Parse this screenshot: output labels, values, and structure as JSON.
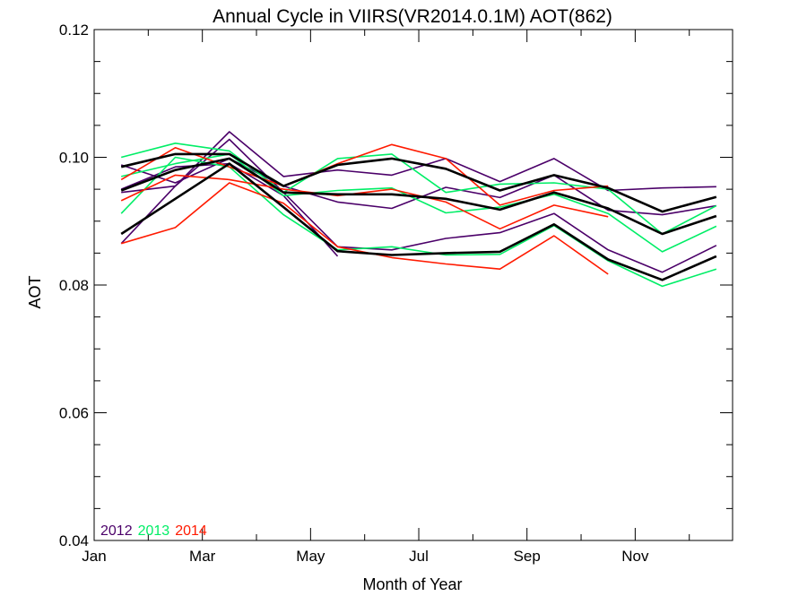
{
  "chart_data": {
    "type": "line",
    "title": "Annual Cycle in VIIRS(VR2014.0.1M) AOT(862)",
    "xlabel": "Month of Year",
    "ylabel": "AOT",
    "xlim": [
      1,
      12.8
    ],
    "ylim": [
      0.04,
      0.12
    ],
    "x_ticks": [
      {
        "value": 1,
        "label": "Jan"
      },
      {
        "value": 3,
        "label": "Mar"
      },
      {
        "value": 5,
        "label": "May"
      },
      {
        "value": 7,
        "label": "Jul"
      },
      {
        "value": 9,
        "label": "Sep"
      },
      {
        "value": 11,
        "label": "Nov"
      }
    ],
    "y_ticks": [
      {
        "value": 0.04,
        "label": "0.04"
      },
      {
        "value": 0.06,
        "label": "0.06"
      },
      {
        "value": 0.08,
        "label": "0.08"
      },
      {
        "value": 0.1,
        "label": "0.10"
      },
      {
        "value": 0.12,
        "label": "0.12"
      }
    ],
    "grid": false,
    "legend": {
      "placement": "bottom-left",
      "entries": [
        {
          "label": "2012",
          "color": "#4b0069"
        },
        {
          "label": "2013",
          "color": "#00ee66"
        },
        {
          "label": "2014",
          "color": "#ff1a00"
        }
      ]
    },
    "series": [
      {
        "color": "#4b0069",
        "width": 1.6,
        "x": [
          1.5,
          2.5,
          3.5,
          4.5,
          5.5,
          6.5,
          7.5,
          8.5,
          9.5,
          10.5,
          11.5,
          12.5
        ],
        "y": [
          0.0865,
          0.0955,
          0.1028,
          0.0945,
          0.086,
          0.0855,
          0.0873,
          0.0882,
          0.0912,
          0.0855,
          0.082,
          0.0862
        ]
      },
      {
        "color": "#4b0069",
        "width": 1.6,
        "x": [
          1.5,
          2.5,
          3.5,
          4.5,
          5.5,
          6.5,
          7.5,
          8.5,
          9.5,
          10.5,
          11.5,
          12.5
        ],
        "y": [
          0.0945,
          0.0955,
          0.104,
          0.097,
          0.098,
          0.0972,
          0.0998,
          0.0962,
          0.0998,
          0.0948,
          0.0952,
          0.0954
        ]
      },
      {
        "color": "#4b0069",
        "width": 1.6,
        "x": [
          1.5,
          2.5,
          3.5,
          4.5,
          5.5,
          6.5,
          7.5,
          8.5,
          9.5,
          10.5,
          11.5,
          12.5
        ],
        "y": [
          0.0988,
          0.096,
          0.0998,
          0.0955,
          0.093,
          0.092,
          0.0953,
          0.0937,
          0.0972,
          0.0917,
          0.091,
          0.0924
        ]
      },
      {
        "color": "#4b0069",
        "width": 1.6,
        "x": [
          1.5,
          2.5,
          3.5,
          4.5,
          5.5
        ],
        "y": [
          0.095,
          0.0985,
          0.099,
          0.094,
          0.0845
        ]
      },
      {
        "color": "#00ee66",
        "width": 1.6,
        "x": [
          1.5,
          2.5,
          3.5,
          4.5,
          5.5,
          6.5,
          7.5,
          8.5,
          9.5,
          10.5,
          11.5,
          12.5
        ],
        "y": [
          0.1,
          0.1022,
          0.101,
          0.0945,
          0.0998,
          0.1005,
          0.0945,
          0.0958,
          0.096,
          0.095,
          0.088,
          0.0924
        ]
      },
      {
        "color": "#00ee66",
        "width": 1.6,
        "x": [
          1.5,
          2.5,
          3.5,
          4.5,
          5.5,
          6.5,
          7.5,
          8.5,
          9.5,
          10.5,
          11.5,
          12.5
        ],
        "y": [
          0.0912,
          0.1,
          0.0985,
          0.091,
          0.0855,
          0.086,
          0.0847,
          0.0848,
          0.0893,
          0.0838,
          0.0798,
          0.0825
        ]
      },
      {
        "color": "#00ee66",
        "width": 1.6,
        "x": [
          1.5,
          2.5,
          3.5,
          4.5,
          5.5,
          6.5,
          7.5,
          8.5,
          9.5,
          10.5,
          11.5,
          12.5
        ],
        "y": [
          0.097,
          0.099,
          0.1005,
          0.094,
          0.0948,
          0.0952,
          0.0913,
          0.0922,
          0.0942,
          0.0912,
          0.0852,
          0.0892
        ]
      },
      {
        "color": "#ff1a00",
        "width": 1.6,
        "x": [
          1.5,
          2.5,
          3.5,
          4.5,
          5.5,
          6.5,
          7.5,
          8.5,
          9.5,
          10.5
        ],
        "y": [
          0.0865,
          0.089,
          0.096,
          0.0928,
          0.086,
          0.0843,
          0.0833,
          0.0825,
          0.0877,
          0.0817
        ]
      },
      {
        "color": "#ff1a00",
        "width": 1.6,
        "x": [
          1.5,
          2.5,
          3.5,
          4.5,
          5.5,
          6.5,
          7.5,
          8.5,
          9.5,
          10.5
        ],
        "y": [
          0.0932,
          0.0972,
          0.0965,
          0.095,
          0.094,
          0.095,
          0.093,
          0.0888,
          0.0925,
          0.0907
        ]
      },
      {
        "color": "#ff1a00",
        "width": 1.6,
        "x": [
          1.5,
          2.5,
          3.5,
          4.5,
          5.5,
          6.5,
          7.5,
          8.5,
          9.5,
          10.5
        ],
        "y": [
          0.0965,
          0.1015,
          0.0985,
          0.0955,
          0.099,
          0.102,
          0.0998,
          0.0925,
          0.0948,
          0.0955
        ]
      },
      {
        "color": "#000000",
        "width": 2.6,
        "x": [
          1.5,
          2.5,
          3.5,
          4.5,
          5.5,
          6.5,
          7.5,
          8.5,
          9.5,
          10.5,
          11.5,
          12.5
        ],
        "y": [
          0.0985,
          0.1005,
          0.1005,
          0.0955,
          0.0988,
          0.0998,
          0.0982,
          0.0948,
          0.0972,
          0.0952,
          0.0915,
          0.0938
        ]
      },
      {
        "color": "#000000",
        "width": 2.6,
        "x": [
          1.5,
          2.5,
          3.5,
          4.5,
          5.5,
          6.5,
          7.5,
          8.5,
          9.5,
          10.5,
          11.5,
          12.5
        ],
        "y": [
          0.0948,
          0.098,
          0.0998,
          0.0945,
          0.0942,
          0.0942,
          0.0935,
          0.0918,
          0.0945,
          0.092,
          0.088,
          0.0908
        ]
      },
      {
        "color": "#000000",
        "width": 2.6,
        "x": [
          1.5,
          2.5,
          3.5,
          4.5,
          5.5,
          6.5,
          7.5,
          8.5,
          9.5,
          10.5,
          11.5,
          12.5
        ],
        "y": [
          0.088,
          0.0935,
          0.099,
          0.0922,
          0.0853,
          0.0847,
          0.085,
          0.0852,
          0.0895,
          0.084,
          0.0808,
          0.0845
        ]
      }
    ]
  }
}
